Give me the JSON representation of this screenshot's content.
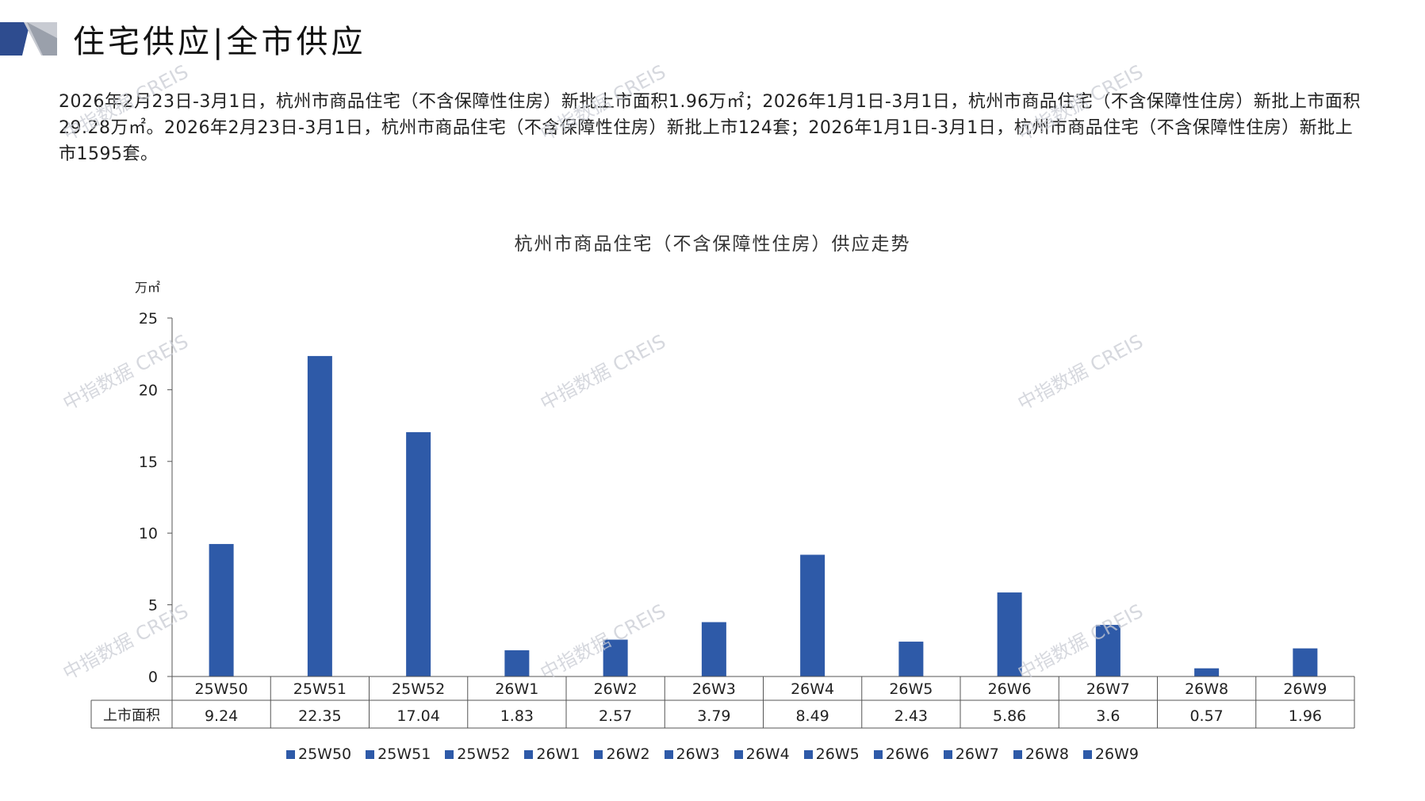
{
  "header": {
    "title": "住宅供应|全市供应"
  },
  "summary": "2026年2月23日-3月1日，杭州市商品住宅（不含保障性住房）新批上市面积1.96万㎡；2026年1月1日-3月1日，杭州市商品住宅（不含保障性住房）新批上市面积29.28万㎡。2026年2月23日-3月1日，杭州市商品住宅（不含保障性住房）新批上市124套；2026年1月1日-3月1日，杭州市商品住宅（不含保障性住房）新批上市1595套。",
  "watermark": "中指数据 CREIS",
  "colors": {
    "bar": "#2e5aa8",
    "logo_dark": "#2e4c8f",
    "logo_light": "#c8cbd2"
  },
  "chart_data": {
    "type": "bar",
    "title": "杭州市商品住宅（不含保障性住房）供应走势",
    "ylabel": "万㎡",
    "xlabel": "",
    "ylim": [
      0,
      25
    ],
    "yticks": [
      0,
      5,
      10,
      15,
      20,
      25
    ],
    "categories": [
      "25W50",
      "25W51",
      "25W52",
      "26W1",
      "26W2",
      "26W3",
      "26W4",
      "26W5",
      "26W6",
      "26W7",
      "26W8",
      "26W9"
    ],
    "series": [
      {
        "name": "上市面积",
        "values": [
          9.24,
          22.35,
          17.04,
          1.83,
          2.57,
          3.79,
          8.49,
          2.43,
          5.86,
          3.6,
          0.57,
          1.96
        ]
      }
    ],
    "table_values": [
      "9.24",
      "22.35",
      "17.04",
      "1.83",
      "2.57",
      "3.79",
      "8.49",
      "2.43",
      "5.86",
      "3.6",
      "0.57",
      "1.96"
    ],
    "legend": [
      "25W50",
      "25W51",
      "25W52",
      "26W1",
      "26W2",
      "26W3",
      "26W4",
      "26W5",
      "26W6",
      "26W7",
      "26W8",
      "26W9"
    ],
    "legend_position": "bottom",
    "grid": false
  }
}
